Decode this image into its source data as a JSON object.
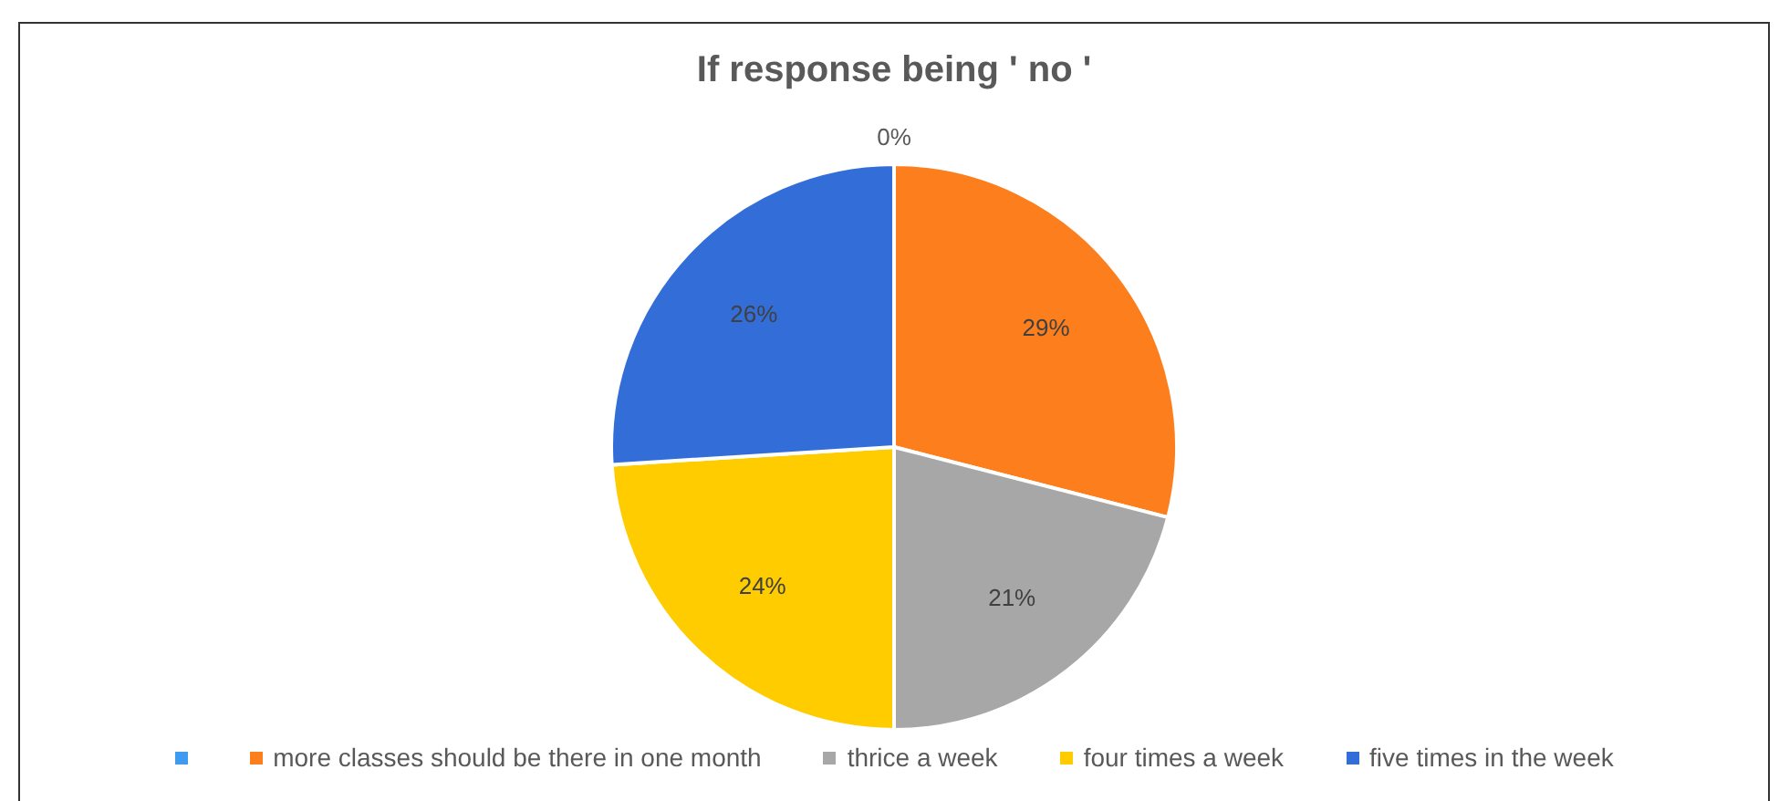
{
  "chart_data": {
    "type": "pie",
    "title": "If response being ' no '",
    "categories": [
      null,
      "more classes should be there in one month",
      "thrice a week",
      "four times a week",
      "five times in the week"
    ],
    "values": [
      0,
      29,
      21,
      24,
      26
    ],
    "colors": [
      "#3f9bef",
      "#fd7e1c",
      "#a7a7a7",
      "#ffcc00",
      "#336ed8"
    ],
    "value_labels": [
      "0%",
      "29%",
      "21%",
      "24%",
      "26%"
    ],
    "legend": "bottom"
  }
}
